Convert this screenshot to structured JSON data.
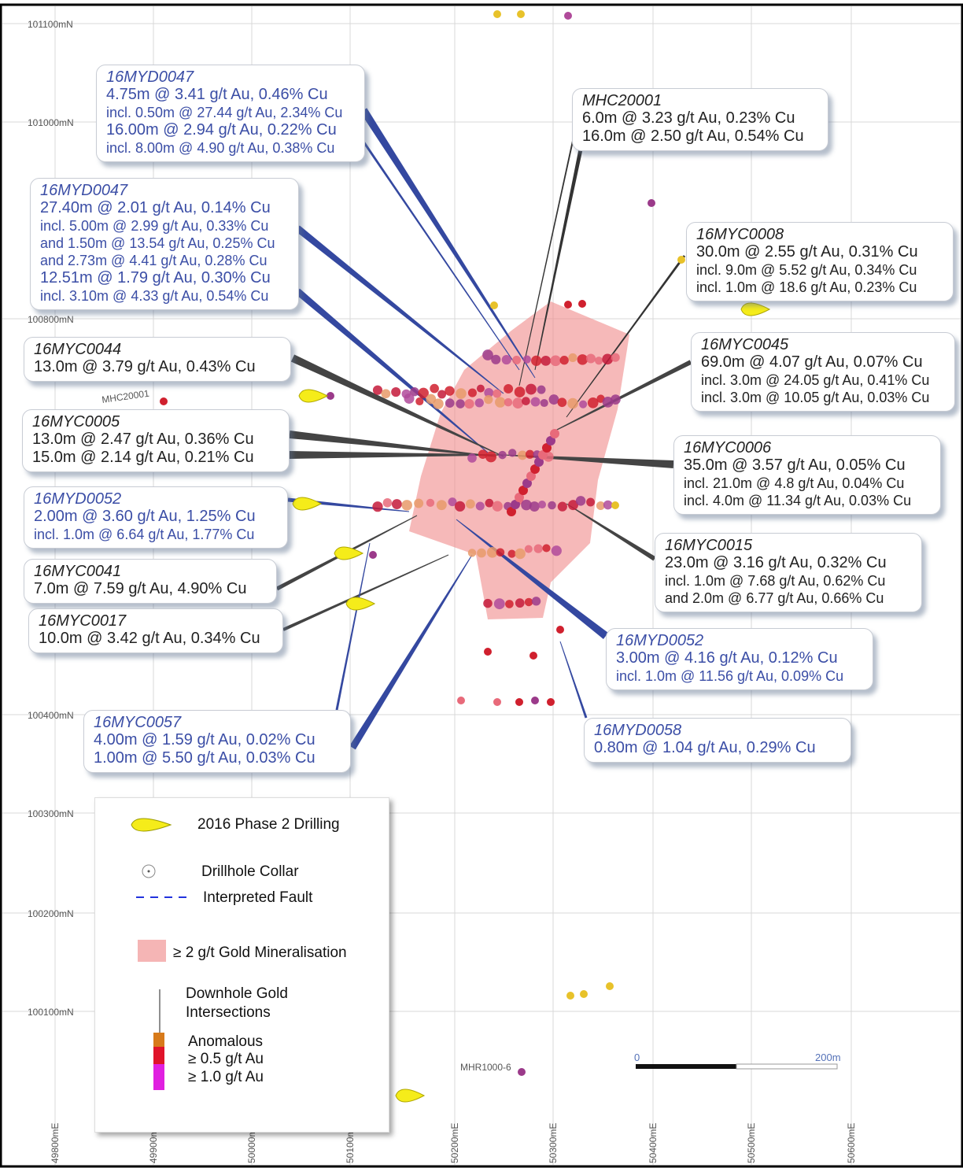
{
  "grid": {
    "northings": [
      "101100mN",
      "101000mN",
      "100800mN",
      "100400mN",
      "100300mN",
      "100200mN",
      "100100mN"
    ],
    "eastings": [
      "49800mE",
      "49900mE",
      "50000mE",
      "50100mE",
      "50200mE",
      "50300mE",
      "50400mE",
      "50500mE",
      "50600mE"
    ]
  },
  "callouts": [
    {
      "hole": "16MYD0047",
      "color": "#3b4ea6",
      "lines": [
        "4.75m @ 3.41 g/t Au, 0.46% Cu",
        "incl. 0.50m @ 27.44 g/t Au, 2.34% Cu",
        "16.00m @ 2.94 g/t Au, 0.22% Cu",
        "incl. 8.00m @ 4.90 g/t Au, 0.38% Cu"
      ]
    },
    {
      "hole": "16MYD0047",
      "color": "#3b4ea6",
      "lines": [
        "27.40m @ 2.01 g/t Au, 0.14% Cu",
        "incl. 5.00m @ 2.99 g/t Au, 0.33% Cu",
        "and 1.50m @ 13.54 g/t Au, 0.25% Cu",
        "and 2.73m @ 4.41 g/t Au, 0.28% Cu",
        "12.51m @ 1.79 g/t Au, 0.30% Cu",
        "incl. 3.10m @ 4.33 g/t Au, 0.54% Cu"
      ]
    },
    {
      "hole": "MHC20001",
      "color": "#222222",
      "lines": [
        "6.0m @ 3.23 g/t Au, 0.23% Cu",
        "16.0m @ 2.50 g/t Au, 0.54% Cu"
      ]
    },
    {
      "hole": "16MYC0008",
      "color": "#222222",
      "lines": [
        "30.0m @ 2.55 g/t Au, 0.31% Cu",
        "incl. 9.0m @ 5.52 g/t Au, 0.34% Cu",
        "incl. 1.0m @ 18.6 g/t Au, 0.23% Cu"
      ]
    },
    {
      "hole": "16MYC0044",
      "color": "#222222",
      "lines": [
        "13.0m @ 3.79 g/t Au, 0.43% Cu"
      ]
    },
    {
      "hole": "16MYC0045",
      "color": "#222222",
      "lines": [
        "69.0m @ 4.07 g/t Au, 0.07% Cu",
        "incl. 3.0m @ 24.05 g/t Au, 0.41% Cu",
        "incl. 3.0m @ 10.05 g/t Au, 0.03% Cu"
      ]
    },
    {
      "hole": "16MYC0005",
      "color": "#222222",
      "lines": [
        "13.0m @ 2.47 g/t Au, 0.36% Cu",
        "15.0m @ 2.14 g/t Au, 0.21% Cu"
      ]
    },
    {
      "hole": "16MYC0006",
      "color": "#222222",
      "lines": [
        "35.0m @ 3.57 g/t Au, 0.05% Cu",
        "incl. 21.0m @ 4.8 g/t Au, 0.04% Cu",
        "incl. 4.0m @ 11.34 g/t Au, 0.03% Cu"
      ]
    },
    {
      "hole": "16MYD0052",
      "color": "#3b4ea6",
      "lines": [
        "2.00m @ 3.60 g/t Au, 1.25% Cu",
        "incl. 1.0m @ 6.64 g/t Au, 1.77% Cu"
      ]
    },
    {
      "hole": "16MYC0015",
      "color": "#222222",
      "lines": [
        "23.0m @ 3.16 g/t Au, 0.32% Cu",
        "incl. 1.0m @ 7.68 g/t Au, 0.62% Cu",
        "and 2.0m @ 6.77 g/t Au, 0.66% Cu"
      ]
    },
    {
      "hole": "16MYC0041",
      "color": "#222222",
      "lines": [
        "7.0m @ 7.59 g/t Au, 4.90% Cu"
      ]
    },
    {
      "hole": "16MYC0017",
      "color": "#222222",
      "lines": [
        "10.0m @ 3.42 g/t Au, 0.34% Cu"
      ]
    },
    {
      "hole": "16MYD0052",
      "color": "#3b4ea6",
      "lines": [
        "3.00m @ 4.16 g/t Au, 0.12% Cu",
        "incl. 1.0m @ 11.56 g/t Au, 0.09% Cu"
      ]
    },
    {
      "hole": "16MYC0057",
      "color": "#3b4ea6",
      "lines": [
        "4.00m @ 1.59 g/t Au, 0.02% Cu",
        "1.00m @ 5.50 g/t Au, 0.03% Cu"
      ]
    },
    {
      "hole": "16MYD0058",
      "color": "#3b4ea6",
      "lines": [
        "0.80m @ 1.04 g/t Au, 0.29% Cu"
      ]
    }
  ],
  "hole_labels": [
    "MHC20001",
    "MHR1000-6"
  ],
  "legend": {
    "drilling": "2016 Phase 2 Drilling",
    "collar": "Drillhole Collar",
    "fault": "Interpreted Fault",
    "mineralisation": "≥ 2 g/t Gold Mineralisation",
    "downhole": [
      "Downhole Gold",
      "Intersections"
    ],
    "grades": [
      "Anomalous",
      "≥ 0.5 g/t Au",
      "≥ 1.0 g/t Au"
    ]
  },
  "scale_bar": {
    "start": "0",
    "end": "200m"
  }
}
